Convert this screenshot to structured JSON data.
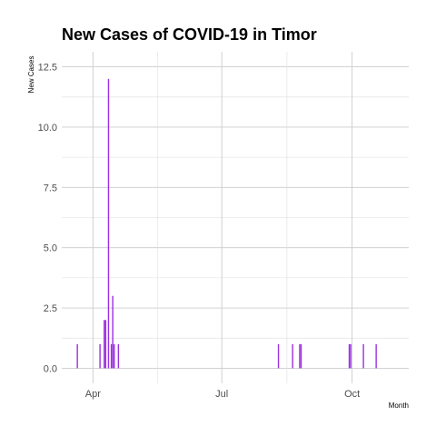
{
  "chart_data": {
    "type": "bar",
    "title": "New Cases of COVID-19 in Timor",
    "xlabel": "Month",
    "ylabel": "New Cases",
    "grid": true,
    "legend": "none",
    "bar_color": "#9b30e0",
    "x_range": [
      "2020-03-10",
      "2020-11-10"
    ],
    "y_range": [
      -0.625,
      13.125
    ],
    "x_ticks": [
      {
        "date": "2020-04-01",
        "label": "Apr"
      },
      {
        "date": "2020-07-01",
        "label": "Jul"
      },
      {
        "date": "2020-10-01",
        "label": "Oct"
      }
    ],
    "y_ticks": [
      {
        "value": 0,
        "label": "0.0"
      },
      {
        "value": 2.5,
        "label": "2.5"
      },
      {
        "value": 5,
        "label": "5.0"
      },
      {
        "value": 7.5,
        "label": "7.5"
      },
      {
        "value": 10,
        "label": "10.0"
      },
      {
        "value": 12.5,
        "label": "12.5"
      }
    ],
    "points": [
      {
        "date": "2020-03-21",
        "value": 1
      },
      {
        "date": "2020-04-06",
        "value": 1
      },
      {
        "date": "2020-04-09",
        "value": 2
      },
      {
        "date": "2020-04-10",
        "value": 2
      },
      {
        "date": "2020-04-12",
        "value": 12
      },
      {
        "date": "2020-04-14",
        "value": 1
      },
      {
        "date": "2020-04-15",
        "value": 3
      },
      {
        "date": "2020-04-16",
        "value": 1
      },
      {
        "date": "2020-04-19",
        "value": 1
      },
      {
        "date": "2020-08-10",
        "value": 1
      },
      {
        "date": "2020-08-20",
        "value": 1
      },
      {
        "date": "2020-08-25",
        "value": 1
      },
      {
        "date": "2020-08-26",
        "value": 1
      },
      {
        "date": "2020-09-29",
        "value": 1
      },
      {
        "date": "2020-09-30",
        "value": 1
      },
      {
        "date": "2020-10-09",
        "value": 1
      },
      {
        "date": "2020-10-18",
        "value": 1
      }
    ]
  }
}
